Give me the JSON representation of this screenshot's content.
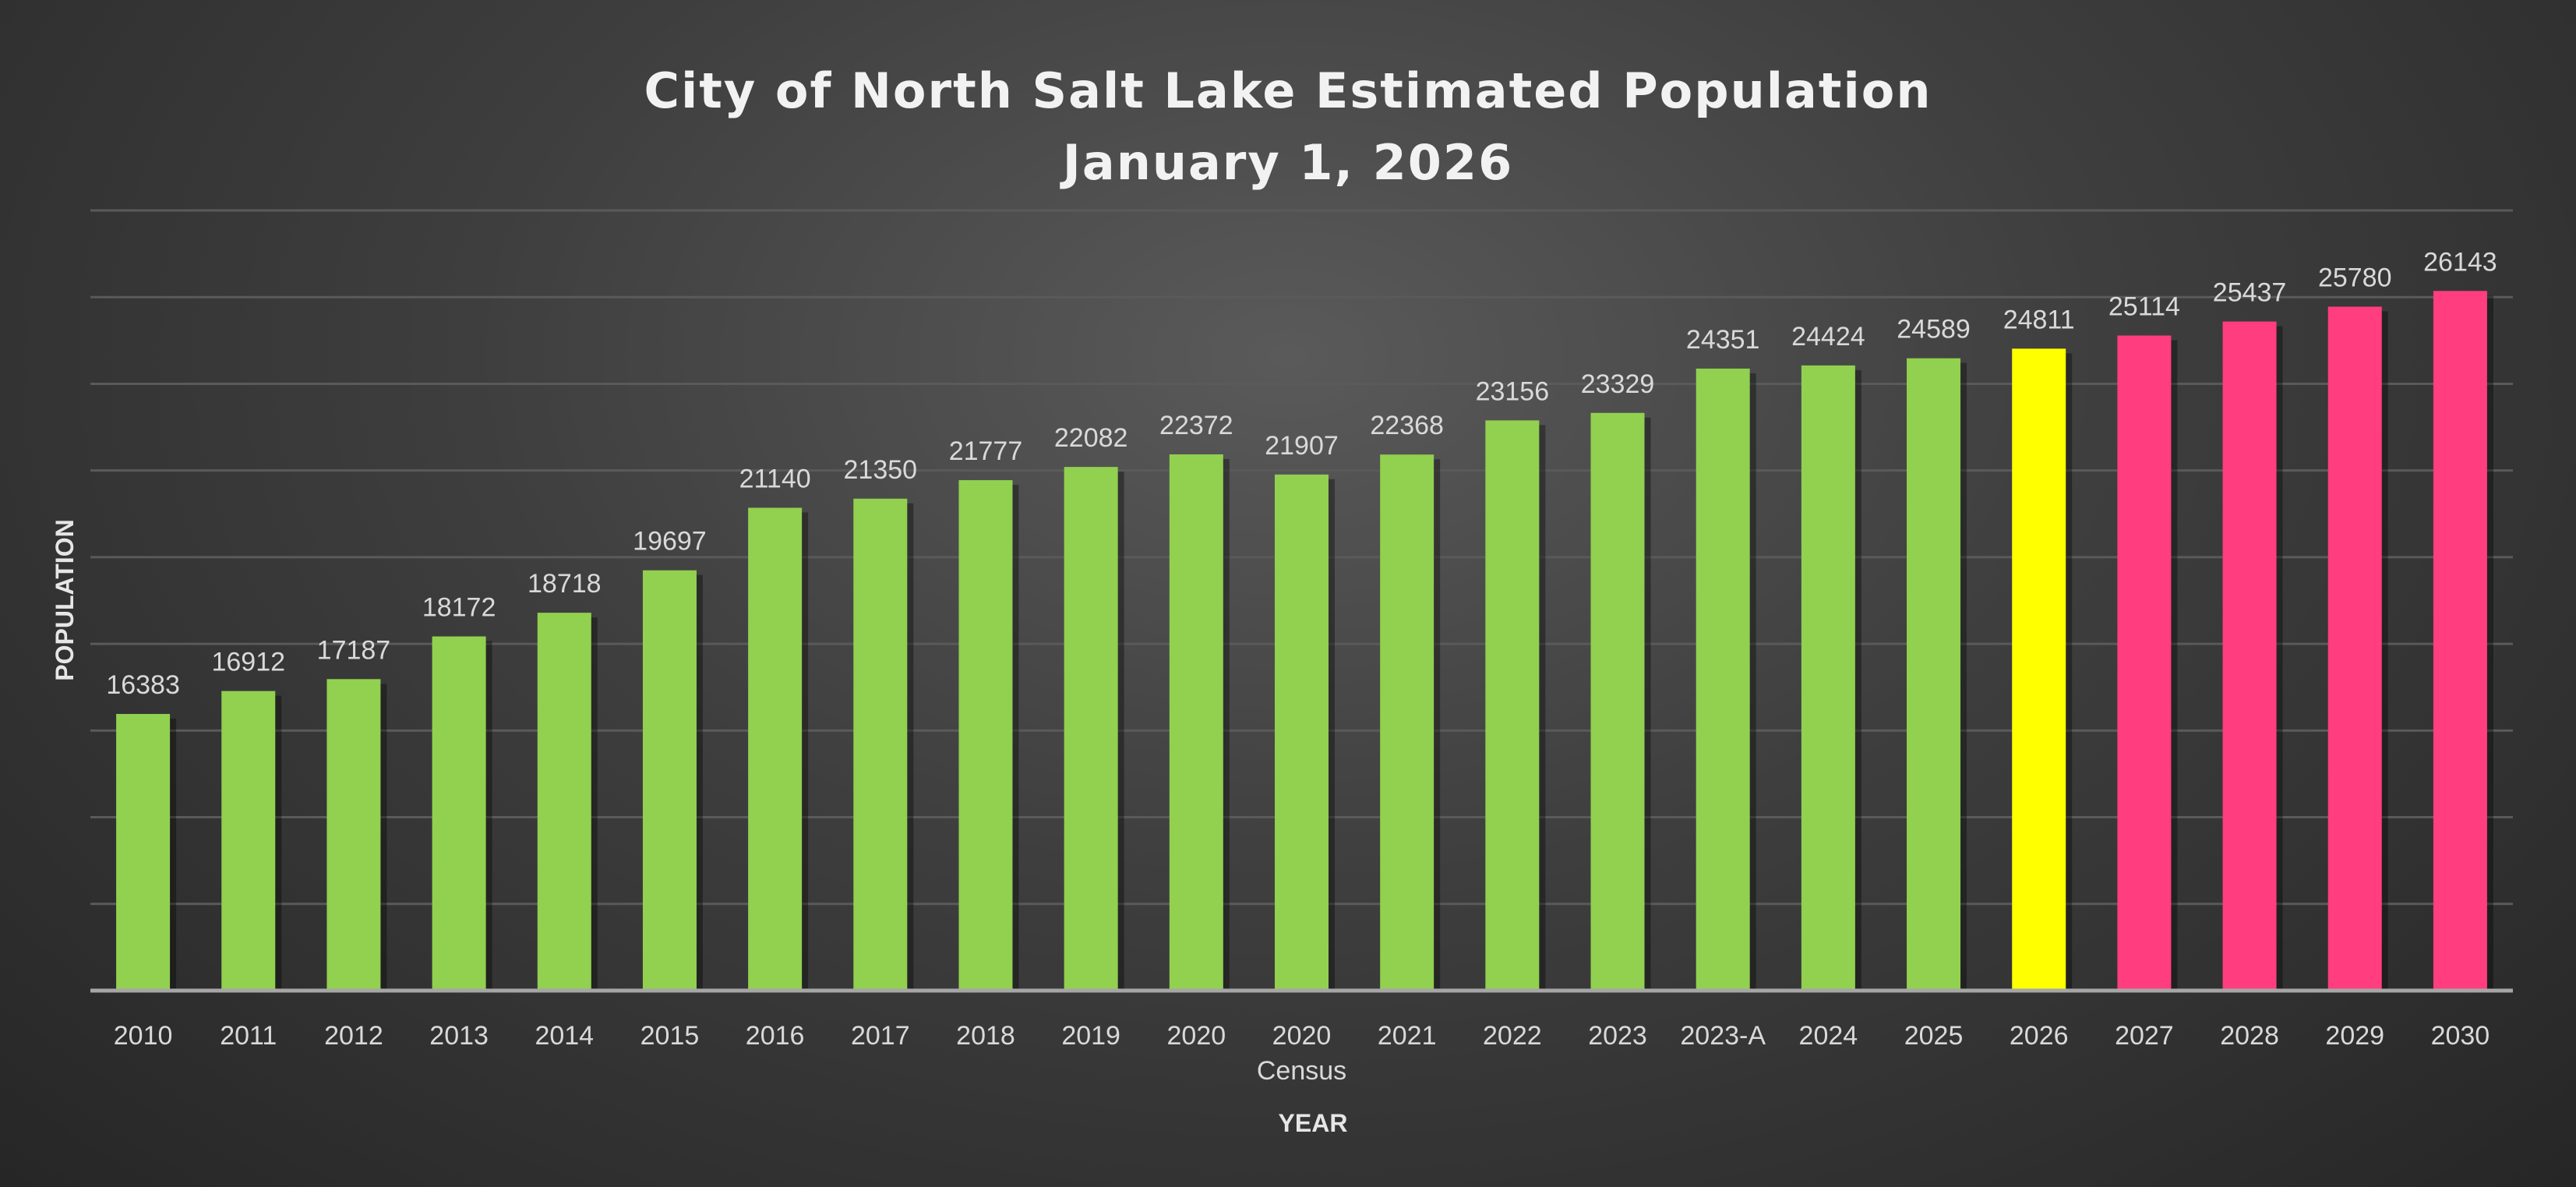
{
  "chart_data": {
    "type": "bar",
    "title": "City of North Salt Lake Estimated Population",
    "subtitle": "January 1, 2026",
    "xlabel": "YEAR",
    "ylabel": "POPULATION",
    "ylim": [
      10000,
      28000
    ],
    "grid": true,
    "grid_step": 2000,
    "legend": "none",
    "categories": [
      "2010",
      "2011",
      "2012",
      "2013",
      "2014",
      "2015",
      "2016",
      "2017",
      "2018",
      "2019",
      "2020",
      "2020\nCensus",
      "2021",
      "2022",
      "2023",
      "2023-A",
      "2024",
      "2025",
      "2026",
      "2027",
      "2028",
      "2029",
      "2030"
    ],
    "values": [
      16383,
      16912,
      17187,
      18172,
      18718,
      19697,
      21140,
      21350,
      21777,
      22082,
      22372,
      21907,
      22368,
      23156,
      23329,
      24351,
      24424,
      24589,
      24811,
      25114,
      25437,
      25780,
      26143
    ],
    "bar_colors": [
      "#92d050",
      "#92d050",
      "#92d050",
      "#92d050",
      "#92d050",
      "#92d050",
      "#92d050",
      "#92d050",
      "#92d050",
      "#92d050",
      "#92d050",
      "#92d050",
      "#92d050",
      "#92d050",
      "#92d050",
      "#92d050",
      "#92d050",
      "#92d050",
      "#ffff00",
      "#ff3d7f",
      "#ff3d7f",
      "#ff3d7f",
      "#ff3d7f"
    ]
  }
}
